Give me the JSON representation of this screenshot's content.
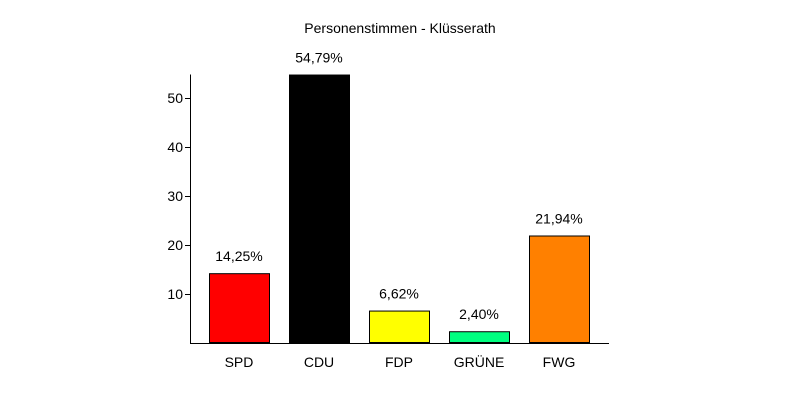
{
  "chart_data": {
    "type": "bar",
    "title": "Personenstimmen - Klüsserath",
    "xlabel": "",
    "ylabel": "",
    "categories": [
      "SPD",
      "CDU",
      "FDP",
      "GRÜNE",
      "FWG"
    ],
    "values": [
      14.25,
      54.79,
      6.62,
      2.4,
      21.94
    ],
    "value_labels": [
      "14,25%",
      "54,79%",
      "6,62%",
      "2,40%",
      "21,94%"
    ],
    "colors": [
      "#ff0000",
      "#000000",
      "#ffff00",
      "#00ff80",
      "#ff8000"
    ],
    "yticks": [
      10,
      20,
      30,
      40,
      50
    ],
    "ylim": [
      0,
      54.79
    ],
    "grid": false
  }
}
